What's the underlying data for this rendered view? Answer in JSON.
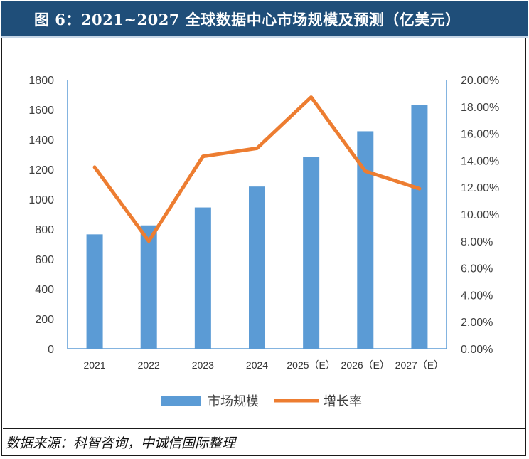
{
  "title": "图 6：2021~2027 全球数据中心市场规模及预测（亿美元）",
  "source": "数据来源：科智咨询，中诚信国际整理",
  "colors": {
    "header_bg": "#1f4e79",
    "bar": "#5b9bd5",
    "line": "#ed7d31",
    "axis": "#5b9bd5",
    "tick_text": "#404040"
  },
  "chart_data": {
    "type": "bar+line",
    "categories": [
      "2021",
      "2022",
      "2023",
      "2024",
      "2025（E）",
      "2026（E）",
      "2027（E）"
    ],
    "series": [
      {
        "name": "市场规模",
        "type": "bar",
        "axis": "left",
        "values": [
          765,
          825,
          945,
          1085,
          1285,
          1455,
          1630
        ]
      },
      {
        "name": "增长率",
        "type": "line",
        "axis": "right",
        "values": [
          0.135,
          0.08,
          0.143,
          0.149,
          0.187,
          0.132,
          0.119
        ]
      }
    ],
    "y_left": {
      "min": 0,
      "max": 1800,
      "ticks": [
        "0",
        "200",
        "400",
        "600",
        "800",
        "1000",
        "1200",
        "1400",
        "1600",
        "1800"
      ]
    },
    "y_right": {
      "min": 0,
      "max": 0.2,
      "ticks": [
        "0.00%",
        "2.00%",
        "4.00%",
        "6.00%",
        "8.00%",
        "10.00%",
        "12.00%",
        "14.00%",
        "16.00%",
        "18.00%",
        "20.00%"
      ]
    },
    "legend": {
      "position": "bottom",
      "entries": [
        "市场规模",
        "增长率"
      ]
    },
    "grid": false
  }
}
